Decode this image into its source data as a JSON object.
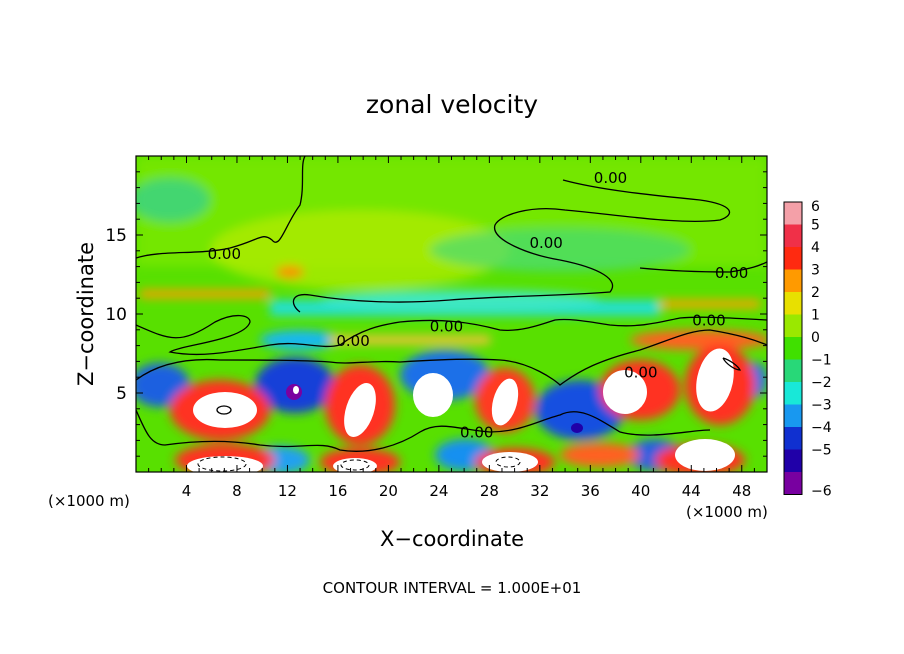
{
  "chart_data": {
    "type": "heatmap",
    "title": "zonal velocity",
    "xlabel": "X−coordinate",
    "ylabel": "Z−coordinate",
    "x_multiplier_left": "(×1000 m)",
    "x_multiplier_right": "(×1000 m)",
    "xlim": [
      0,
      50
    ],
    "ylim": [
      0,
      20
    ],
    "x_ticks": [
      4,
      8,
      12,
      16,
      20,
      24,
      28,
      32,
      36,
      40,
      44,
      48
    ],
    "x_tick_labels": [
      "4",
      "8",
      "12",
      "16",
      "20",
      "24",
      "28",
      "32",
      "36",
      "40",
      "44",
      "48"
    ],
    "y_ticks": [
      5,
      10,
      15
    ],
    "y_tick_labels": [
      "5",
      "10",
      "15"
    ],
    "colorbar": {
      "range": [
        -6,
        6
      ],
      "levels": [
        6,
        5,
        4,
        3,
        2,
        1,
        0,
        -1,
        -2,
        -3,
        -4,
        -5,
        -6
      ],
      "labels": [
        "6",
        "5",
        "4",
        "3",
        "2",
        "1",
        "0",
        "−1",
        "−2",
        "−3",
        "−4",
        "−5",
        "−6"
      ],
      "colors": [
        "#f4a0a8",
        "#f03048",
        "#ff2a10",
        "#ff9a00",
        "#e8e000",
        "#9ae800",
        "#40e000",
        "#28d878",
        "#18e8d8",
        "#1898f0",
        "#1030d0",
        "#2000a8",
        "#7800a0"
      ]
    },
    "contour_labels": [
      {
        "text": "0.00",
        "x": 7,
        "z": 13.8
      },
      {
        "text": "0.00",
        "x": 24.6,
        "z": 9.2
      },
      {
        "text": "0.00",
        "x": 37.6,
        "z": 18.6
      },
      {
        "text": "0.00",
        "x": 32.5,
        "z": 14.5
      },
      {
        "text": "0.00",
        "x": 47.2,
        "z": 12.6
      },
      {
        "text": "0.00",
        "x": 45.4,
        "z": 9.6
      },
      {
        "text": "0.00",
        "x": 40.0,
        "z": 6.3
      },
      {
        "text": "0.00",
        "x": 17.2,
        "z": 8.3
      },
      {
        "text": "0.00",
        "x": 27.0,
        "z": 2.5
      }
    ],
    "footnote": "CONTOUR INTERVAL = 1.000E+01"
  }
}
